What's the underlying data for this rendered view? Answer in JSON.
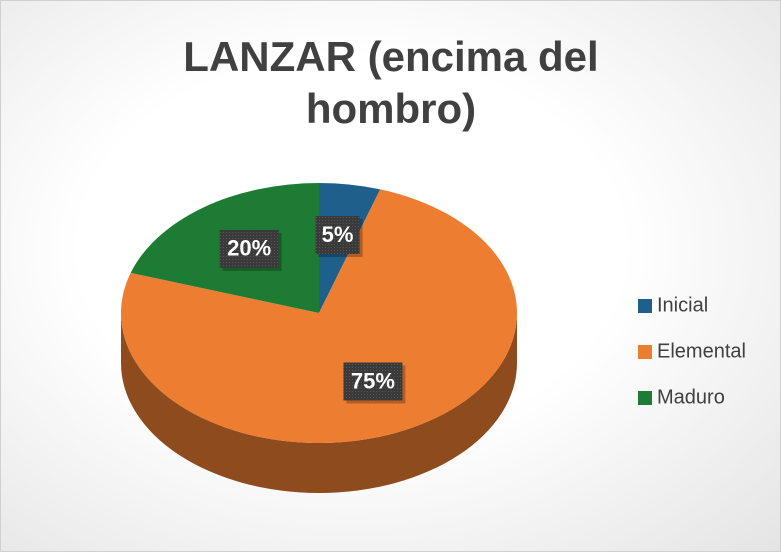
{
  "chart_data": {
    "type": "pie",
    "title": "LANZAR (encima del hombro)",
    "categories": [
      "Inicial",
      "Elemental",
      "Maduro"
    ],
    "values": [
      5,
      75,
      20
    ],
    "value_labels": [
      "5%",
      "75%",
      "20%"
    ],
    "colors": [
      "#1f5f8b",
      "#ed7d31",
      "#1e7b34"
    ],
    "legend": "right"
  }
}
